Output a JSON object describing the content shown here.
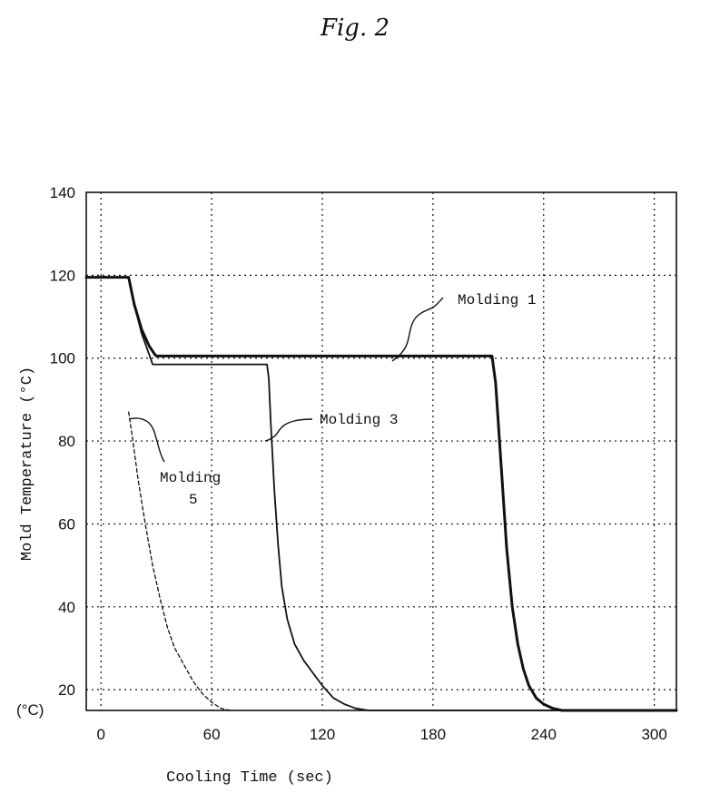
{
  "figure": {
    "title": "Fig. 2"
  },
  "chart_data": {
    "type": "line",
    "title": "",
    "xlabel": "Cooling Time (sec)",
    "ylabel": "Mold Temperature (°C)",
    "y_unit_label": "(°C)",
    "xlim": [
      -8,
      312
    ],
    "ylim": [
      15,
      140
    ],
    "xticks": [
      0,
      60,
      120,
      180,
      240,
      300
    ],
    "yticks": [
      20,
      40,
      60,
      80,
      100,
      120,
      140
    ],
    "grid": true,
    "grid_style": "dotted",
    "legend": "none",
    "series": [
      {
        "name": "Molding 1",
        "line_style": "thick-solid",
        "color": "#111111",
        "x": [
          -8,
          15,
          18,
          22,
          26,
          29,
          30,
          60,
          120,
          180,
          212,
          214,
          217,
          220,
          223,
          226,
          229,
          232,
          236,
          240,
          245,
          250,
          312
        ],
        "y": [
          119.5,
          119.5,
          113,
          107,
          103,
          101,
          100.5,
          100.5,
          100.5,
          100.5,
          100.5,
          94,
          74,
          54,
          40,
          31,
          25,
          21,
          18,
          16.5,
          15.5,
          15,
          15
        ]
      },
      {
        "name": "Molding 3",
        "line_style": "solid",
        "color": "#111111",
        "x": [
          -8,
          15,
          18,
          22,
          26,
          28,
          60,
          90,
          91,
          92,
          94,
          96,
          98,
          101,
          105,
          110,
          115,
          120,
          126,
          132,
          138,
          145,
          312
        ],
        "y": [
          119.5,
          119.5,
          113,
          106,
          101,
          98.5,
          98.5,
          98.5,
          95,
          85,
          68,
          55,
          45,
          37,
          31,
          27,
          24,
          21,
          18,
          16.5,
          15.5,
          15,
          15
        ]
      },
      {
        "name": "Molding 5",
        "line_style": "dashed",
        "color": "#111111",
        "x": [
          15,
          17,
          20,
          24,
          28,
          32,
          36,
          40,
          45,
          50,
          55,
          60,
          65,
          70
        ],
        "y": [
          87,
          81,
          71,
          60,
          50,
          42,
          35,
          30,
          26,
          22,
          19,
          17,
          15.5,
          15
        ]
      }
    ],
    "annotations": [
      {
        "text": "Molding 1",
        "series": "Molding 1"
      },
      {
        "text": "Molding 3",
        "series": "Molding 3"
      },
      {
        "text": "Molding",
        "series": "Molding 5"
      },
      {
        "text": "5",
        "series": "Molding 5"
      }
    ]
  }
}
